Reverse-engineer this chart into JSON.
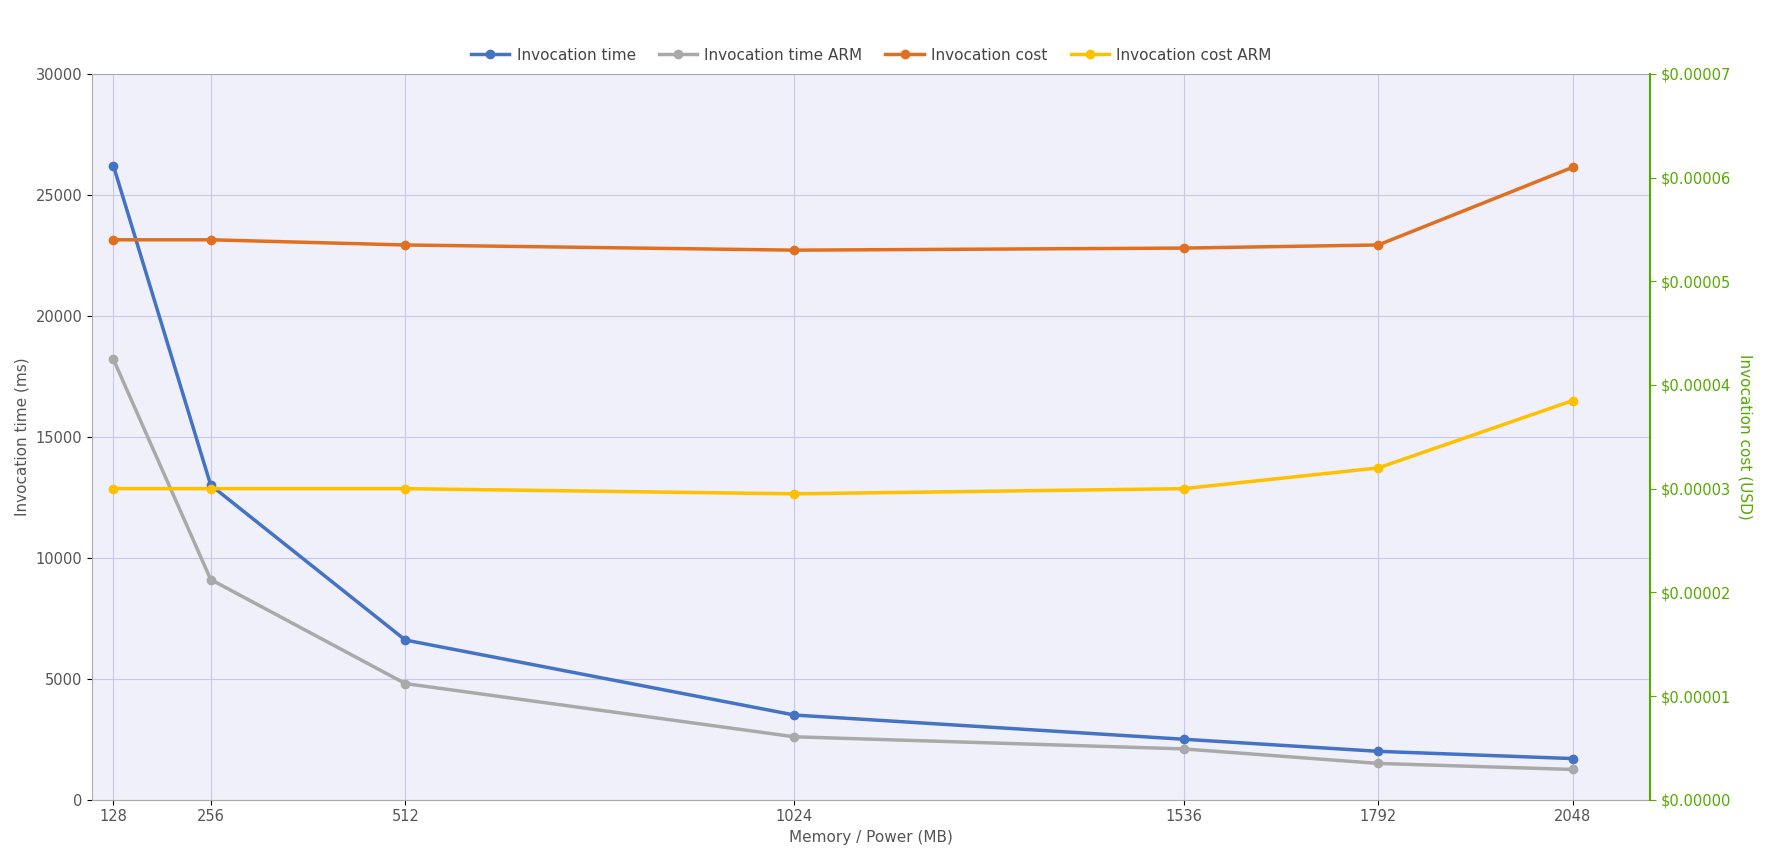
{
  "x": [
    128,
    256,
    512,
    1024,
    1536,
    1792,
    2048
  ],
  "invocation_time": [
    26200,
    13000,
    6600,
    3500,
    2500,
    2000,
    1700
  ],
  "invocation_time_arm": [
    18200,
    9100,
    4800,
    2600,
    2100,
    1500,
    1250
  ],
  "invocation_cost": [
    5.4e-05,
    5.4e-05,
    5.35e-05,
    5.3e-05,
    5.32e-05,
    5.35e-05,
    6.1e-05
  ],
  "invocation_cost_arm": [
    3e-05,
    3e-05,
    3e-05,
    2.95e-05,
    3e-05,
    3.2e-05,
    3.85e-05
  ],
  "colors": {
    "invocation_time": "#4472C4",
    "invocation_time_arm": "#A9A9A9",
    "invocation_cost": "#E07020",
    "invocation_cost_arm": "#FFC000"
  },
  "ylabel_left": "Invocation time (ms)",
  "ylabel_right": "Invocation cost (USD)",
  "xlabel": "Memory / Power (MB)",
  "ylim_left": [
    0,
    30000
  ],
  "ylim_right": [
    0,
    7e-05
  ],
  "yticks_left": [
    0,
    5000,
    10000,
    15000,
    20000,
    25000,
    30000
  ],
  "yticks_right": [
    0.0,
    1e-05,
    2e-05,
    3e-05,
    4e-05,
    5e-05,
    6e-05,
    7e-05
  ],
  "legend_labels": [
    "Invocation time",
    "Invocation time ARM",
    "Invocation cost",
    "Invocation cost ARM"
  ],
  "plot_bg_color": "#F0F0FA",
  "fig_bg_color": "#FFFFFF",
  "grid_color": "#C8C8E8",
  "grid_major_color": "#AAAACC",
  "right_axis_color": "#55AA00",
  "tick_label_color": "#555555",
  "axis_label_color": "#555555",
  "legend_fontsize": 11,
  "axis_fontsize": 11,
  "tick_fontsize": 10.5,
  "linewidth": 2.5,
  "markersize": 6
}
